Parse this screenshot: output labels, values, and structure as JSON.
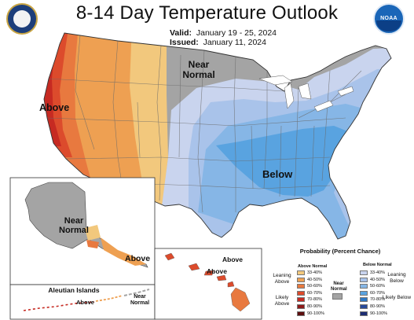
{
  "header": {
    "title": "8-14 Day Temperature Outlook",
    "valid_label": "Valid:",
    "valid_value": "January 19 - 25, 2024",
    "issued_label": "Issued:",
    "issued_value": "January 11, 2024"
  },
  "logos": {
    "left": "seal-icon",
    "right_text": "NOAA"
  },
  "map_labels": {
    "near_normal": "Near Normal",
    "above_west": "Above",
    "below_southeast": "Below",
    "alaska_near_normal": "Near Normal",
    "alaska_above": "Above",
    "hawaii_above_1": "Above",
    "hawaii_above_2": "Above",
    "aleutian_title": "Aleutian Islands",
    "aleutian_above": "Above",
    "aleutian_near_normal": "Near Normal"
  },
  "colors": {
    "near_normal": "#a4a4a4",
    "above": [
      "#f2c87d",
      "#eea052",
      "#e8793f",
      "#dc4b2c",
      "#c62a22",
      "#8e1a1a",
      "#5c0e0e"
    ],
    "below": [
      "#c9d4ee",
      "#a9c3ea",
      "#86b6e6",
      "#59a3e0",
      "#2e78c4",
      "#274a9a",
      "#1d2d72"
    ]
  },
  "legend": {
    "title": "Probability (Percent Chance)",
    "above_header": "Above Normal",
    "below_header": "Below Normal",
    "ranges": [
      "33-40%",
      "40-50%",
      "50-60%",
      "60-70%",
      "70-80%",
      "80-90%",
      "90-100%"
    ],
    "leaning_above": "Leaning Above",
    "likely_above": "Likely Above",
    "leaning_below": "Leaning Below",
    "likely_below": "Likely Below",
    "near_normal": "Near Normal"
  }
}
